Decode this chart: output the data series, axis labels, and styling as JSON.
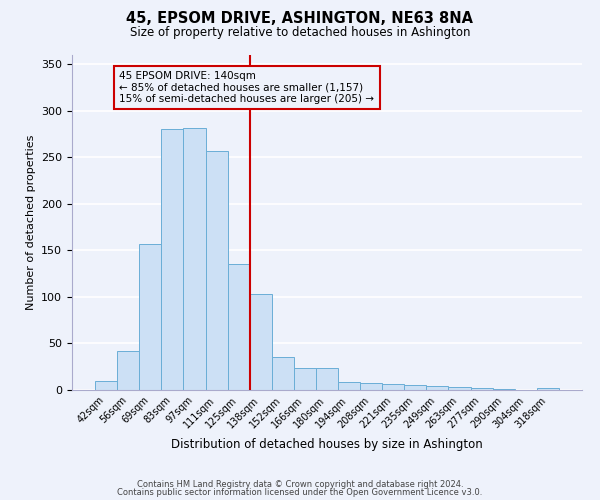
{
  "title": "45, EPSOM DRIVE, ASHINGTON, NE63 8NA",
  "subtitle": "Size of property relative to detached houses in Ashington",
  "xlabel": "Distribution of detached houses by size in Ashington",
  "ylabel": "Number of detached properties",
  "bar_labels": [
    "42sqm",
    "56sqm",
    "69sqm",
    "83sqm",
    "97sqm",
    "111sqm",
    "125sqm",
    "138sqm",
    "152sqm",
    "166sqm",
    "180sqm",
    "194sqm",
    "208sqm",
    "221sqm",
    "235sqm",
    "249sqm",
    "263sqm",
    "277sqm",
    "290sqm",
    "304sqm",
    "318sqm"
  ],
  "bar_heights": [
    10,
    42,
    157,
    280,
    282,
    257,
    135,
    103,
    36,
    24,
    24,
    9,
    8,
    6,
    5,
    4,
    3,
    2,
    1,
    0,
    2
  ],
  "bar_color": "#cce0f5",
  "bar_edge_color": "#6aaed6",
  "vline_color": "#cc0000",
  "annotation_title": "45 EPSOM DRIVE: 140sqm",
  "annotation_line1": "← 85% of detached houses are smaller (1,157)",
  "annotation_line2": "15% of semi-detached houses are larger (205) →",
  "annotation_box_color": "#cc0000",
  "ylim": [
    0,
    360
  ],
  "yticks": [
    0,
    50,
    100,
    150,
    200,
    250,
    300,
    350
  ],
  "footer_line1": "Contains HM Land Registry data © Crown copyright and database right 2024.",
  "footer_line2": "Contains public sector information licensed under the Open Government Licence v3.0.",
  "bg_color": "#eef2fb",
  "grid_color": "#ffffff"
}
